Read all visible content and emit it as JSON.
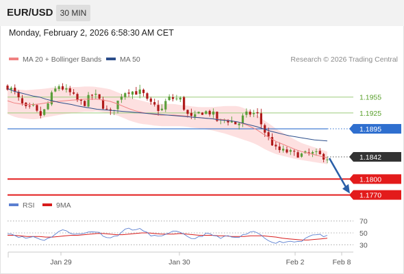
{
  "header": {
    "pair": "EUR/USD",
    "timeframe": "30 MIN"
  },
  "timestamp": "Monday, February 2, 2026 6:58:30 AM CET",
  "legend": {
    "ma20_label": "MA 20 + Bollinger Bands",
    "ma50_label": "MA 50",
    "copyright": "Research © 2026 Trading Central",
    "rsi_label": "RSI",
    "ma9_label": "9MA"
  },
  "colors": {
    "ma20": "#f08080",
    "bollinger_fill": "#fde0e0",
    "ma50": "#2b4d8a",
    "resistance": "#9ccc7a",
    "resistance_text": "#5aa02c",
    "pivot": "#2f6fcf",
    "current": "#333333",
    "support": "#e31b1b",
    "candle_up": "#5a9e3a",
    "candle_down": "#b01a1a",
    "rsi": "#5b7fd0",
    "rsi_ma": "#d81b1b",
    "arrow": "#2a5fa8"
  },
  "chart_data": [
    {
      "type": "candlestick",
      "title": "EUR/USD",
      "timeframe": "30 MIN",
      "x_ticks": [
        "Jan 29",
        "Jan 30",
        "Feb 2",
        "Feb 8"
      ],
      "ylim": [
        1.1763,
        1.2009
      ],
      "levels": [
        {
          "name": "resistance-2",
          "value": 1.1955,
          "label": "1.1955",
          "kind": "resistance"
        },
        {
          "name": "resistance-1",
          "value": 1.1925,
          "label": "1.1925",
          "kind": "resistance"
        },
        {
          "name": "pivot",
          "value": 1.1895,
          "label": "1.1895",
          "kind": "pivot"
        },
        {
          "name": "current-price",
          "value": 1.1842,
          "label": "1.1842",
          "kind": "current"
        },
        {
          "name": "support-1",
          "value": 1.18,
          "label": "1.1800",
          "kind": "support"
        },
        {
          "name": "support-2",
          "value": 1.177,
          "label": "1.1770",
          "kind": "support"
        }
      ],
      "price_path": [
        1.1975,
        1.1966,
        1.1945,
        1.1931,
        1.1936,
        1.1918,
        1.1933,
        1.1962,
        1.1977,
        1.1968,
        1.1961,
        1.1947,
        1.1942,
        1.1959,
        1.1956,
        1.1937,
        1.1923,
        1.1941,
        1.1964,
        1.1967,
        1.1964,
        1.1965,
        1.1944,
        1.1938,
        1.1928,
        1.1953,
        1.1952,
        1.1951,
        1.1923,
        1.1913,
        1.1926,
        1.1927,
        1.1925,
        1.1907,
        1.1913,
        1.1909,
        1.1902,
        1.1921,
        1.1924,
        1.1924,
        1.1894,
        1.1874,
        1.1856,
        1.1853,
        1.1851,
        1.1847,
        1.1846,
        1.1848,
        1.1848,
        1.1844,
        1.184
      ],
      "ma20_path": [
        1.1948,
        1.1944,
        1.1942,
        1.1941,
        1.1941,
        1.1942,
        1.1944,
        1.1946,
        1.1947,
        1.1948,
        1.1949,
        1.195,
        1.1951,
        1.1951,
        1.1951,
        1.1949,
        1.1947,
        1.1943,
        1.1938,
        1.1933,
        1.1929,
        1.1926,
        1.1924,
        1.1922,
        1.1921,
        1.1921,
        1.1921,
        1.192,
        1.1919,
        1.1917,
        1.1916,
        1.1915,
        1.1914,
        1.1913,
        1.1912,
        1.191,
        1.1908,
        1.1904,
        1.1899,
        1.1893,
        1.1885,
        1.1878,
        1.1871,
        1.1866,
        1.1861,
        1.1856,
        1.1852,
        1.1849,
        1.1846,
        1.1843,
        1.184
      ],
      "ma50_path": [
        1.1971,
        1.1966,
        1.1963,
        1.196,
        1.1957,
        1.1955,
        1.1951,
        1.1948,
        1.1945,
        1.1943,
        1.1941,
        1.1938,
        1.1936,
        1.1934,
        1.1932,
        1.1931,
        1.193,
        1.1929,
        1.1928,
        1.1927,
        1.1926,
        1.1925,
        1.1924,
        1.1923,
        1.1922,
        1.1921,
        1.192,
        1.1919,
        1.1918,
        1.1917,
        1.1916,
        1.1915,
        1.1914,
        1.1912,
        1.1911,
        1.191,
        1.1908,
        1.1905,
        1.1902,
        1.1899,
        1.1895,
        1.1891,
        1.1888,
        1.1885,
        1.1882,
        1.188,
        1.1878,
        1.1876,
        1.1874,
        1.1873,
        1.1872
      ],
      "bollinger_half_width": [
        0.0025,
        0.0026,
        0.0027,
        0.0027,
        0.0028,
        0.0028,
        0.0027,
        0.0027,
        0.0026,
        0.0025,
        0.0025,
        0.0024,
        0.0024,
        0.0024,
        0.0023,
        0.0023,
        0.0023,
        0.0022,
        0.0022,
        0.0022,
        0.0022,
        0.0022,
        0.0021,
        0.0021,
        0.0021,
        0.0021,
        0.0021,
        0.002,
        0.002,
        0.002,
        0.002,
        0.0021,
        0.0022,
        0.0024,
        0.0026,
        0.0028,
        0.003,
        0.003,
        0.0029,
        0.0028,
        0.0027,
        0.0026,
        0.0024,
        0.0022,
        0.002,
        0.0018,
        0.0016,
        0.0015,
        0.0014,
        0.0013,
        0.0012
      ],
      "forecast": {
        "from": 1.1842,
        "to": 1.177
      }
    },
    {
      "type": "line",
      "title": "RSI",
      "ylim": [
        20,
        80
      ],
      "ticks": [
        70,
        50,
        30
      ],
      "series": [
        {
          "name": "RSI",
          "values": [
            50,
            47,
            43,
            41,
            44,
            40,
            38,
            45,
            52,
            55,
            50,
            47,
            49,
            53,
            52,
            46,
            41,
            45,
            53,
            58,
            55,
            56,
            48,
            45,
            42,
            51,
            52,
            50,
            43,
            40,
            44,
            48,
            47,
            42,
            44,
            43,
            41,
            47,
            50,
            51,
            42,
            37,
            34,
            35,
            36,
            35,
            37,
            45,
            47,
            46,
            44
          ]
        },
        {
          "name": "9MA",
          "values": [
            46,
            46,
            45,
            44,
            44,
            44,
            43,
            43,
            44,
            45,
            46,
            46,
            47,
            48,
            49,
            49,
            48,
            47,
            47,
            48,
            49,
            50,
            50,
            49,
            48,
            48,
            48,
            49,
            48,
            47,
            46,
            46,
            46,
            45,
            45,
            44,
            44,
            44,
            45,
            45,
            45,
            44,
            43,
            41,
            40,
            39,
            38,
            38,
            39,
            40,
            41
          ]
        }
      ]
    }
  ]
}
